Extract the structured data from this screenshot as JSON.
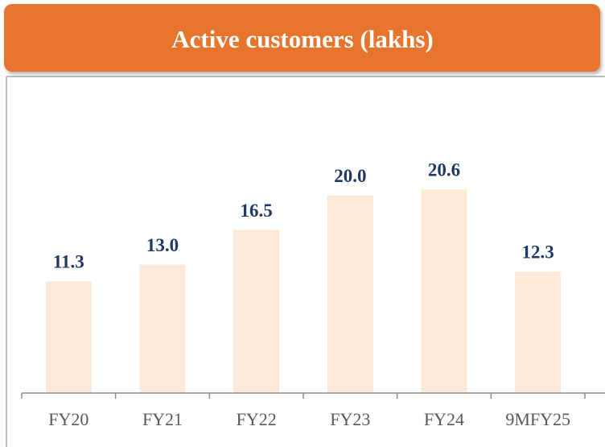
{
  "chart_data": {
    "type": "bar",
    "title": "Active customers (lakhs)",
    "categories": [
      "FY20",
      "FY21",
      "FY22",
      "FY23",
      "FY24",
      "9MFY25"
    ],
    "values": [
      11.3,
      13.0,
      16.5,
      20.0,
      20.6,
      12.3
    ],
    "value_labels": [
      "11.3",
      "13.0",
      "16.5",
      "20.0",
      "20.6",
      "12.3"
    ],
    "color": "#fde9d9",
    "ylim": [
      0,
      30
    ]
  }
}
